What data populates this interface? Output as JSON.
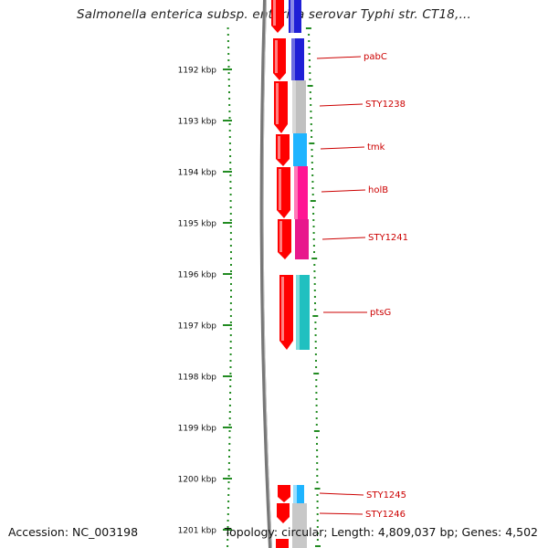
{
  "title": "Salmonella enterica subsp. enterica serovar Typhi str. CT18,...",
  "footer": {
    "accession": "Accession: NC_003198",
    "summary": "Topology: circular; Length: 4,809,037 bp; Genes: 4,502"
  },
  "ruler_labels": [
    "1192 kbp",
    "1193 kbp",
    "1194 kbp",
    "1195 kbp",
    "1196 kbp",
    "1197 kbp",
    "1198 kbp",
    "1199 kbp",
    "1200 kbp",
    "1201 kbp"
  ],
  "gene_labels": [
    "pabC",
    "STY1238",
    "tmk",
    "holB",
    "STY1241",
    "ptsG",
    "STY1245",
    "STY1246"
  ],
  "colors": {
    "forward_strand": "#ff0000",
    "backbone": "#888888",
    "ruler_tick": "#228b22",
    "label_text": "#cc0000",
    "pabC_cog": "#1f1fd6",
    "STY1238_cog": "#c0c0c0",
    "tmk_cog": "#1eb4ff",
    "holB_cog": "#ff1493",
    "STY1241_cog": "#e8198c",
    "ptsG_cog": "#20c0c0",
    "STY1245_cog": "#1eb4ff"
  }
}
